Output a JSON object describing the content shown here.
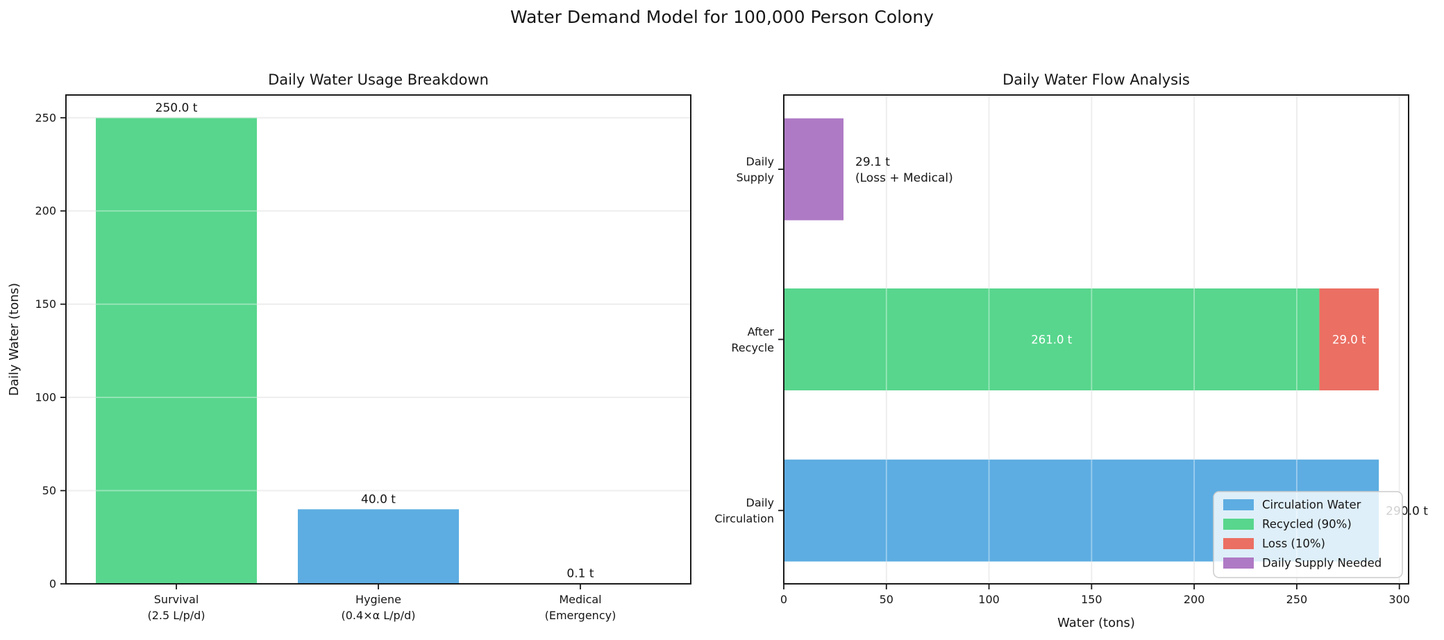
{
  "figure": {
    "title": "Water Demand Model for 100,000 Person Colony",
    "background": "#ffffff",
    "text_color": "#161616",
    "grid_color": "#e2e2e2",
    "spine_color": "#1a1a1a"
  },
  "chart_data": [
    {
      "type": "bar",
      "title": "Daily Water Usage Breakdown",
      "xlabel": "",
      "ylabel": "Daily Water (tons)",
      "categories": [
        "Survival\n(2.5 L/p/d)",
        "Hygiene\n(0.4×α L/p/d)",
        "Medical\n(Emergency)"
      ],
      "values": [
        250.0,
        40.0,
        0.1
      ],
      "bar_labels": [
        "250.0 t",
        "40.0 t",
        "0.1 t"
      ],
      "bar_colors": [
        "#58d68d",
        "#5dade2",
        "#eb6f63"
      ],
      "yticks": [
        0,
        50,
        100,
        150,
        200,
        250
      ],
      "ylim": [
        0,
        262.2
      ],
      "grid": "horizontal"
    },
    {
      "type": "barh-stacked",
      "title": "Daily Water Flow Analysis",
      "xlabel": "Water (tons)",
      "ylabel": "",
      "rows": [
        {
          "label": "Daily\nSupply",
          "segments": [
            {
              "name": "Daily Supply Needed",
              "value": 29.1,
              "color": "#af7ac5"
            }
          ],
          "annotation": "29.1 t\n(Loss + Medical)"
        },
        {
          "label": "After\nRecycle",
          "segments": [
            {
              "name": "Recycled (90%)",
              "value": 261.0,
              "color": "#58d68d",
              "label": "261.0 t",
              "label_color": "#ffffff"
            },
            {
              "name": "Loss (10%)",
              "value": 29.0,
              "color": "#eb6f63",
              "label": "29.0 t",
              "label_color": "#ffffff"
            }
          ]
        },
        {
          "label": "Daily\nCirculation",
          "segments": [
            {
              "name": "Circulation Water",
              "value": 290.0,
              "color": "#5dade2"
            }
          ],
          "end_label": "290.0 t"
        }
      ],
      "xticks": [
        0,
        50,
        100,
        150,
        200,
        250,
        300
      ],
      "xlim": [
        0,
        304.5
      ],
      "grid": "vertical",
      "legend": {
        "position": "lower right",
        "entries": [
          {
            "label": "Circulation Water",
            "color": "#5dade2"
          },
          {
            "label": "Recycled (90%)",
            "color": "#58d68d"
          },
          {
            "label": "Loss (10%)",
            "color": "#eb6f63"
          },
          {
            "label": "Daily Supply Needed",
            "color": "#af7ac5"
          }
        ]
      }
    }
  ]
}
